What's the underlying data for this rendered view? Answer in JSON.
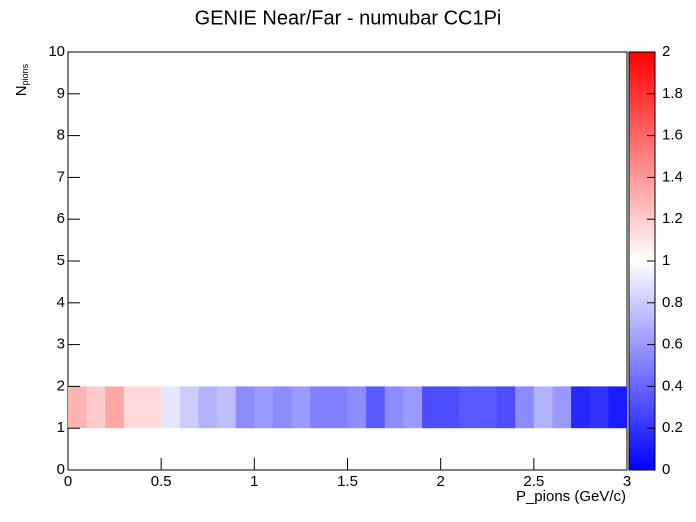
{
  "chart_data": {
    "type": "heatmap",
    "title": "GENIE Near/Far - numubar CC1Pi",
    "xlabel": "P_pions (GeV/c)",
    "ylabel": "N",
    "ylabel_sub": "pions",
    "xbins": [
      0,
      0.1,
      0.2,
      0.3,
      0.4,
      0.5,
      0.6,
      0.7,
      0.8,
      0.9,
      1,
      1.1,
      1.2,
      1.3,
      1.4,
      1.5,
      1.6,
      1.7,
      1.8,
      1.9,
      2,
      2.1,
      2.2,
      2.3,
      2.4,
      2.5,
      2.6,
      2.7,
      2.8,
      2.9,
      3
    ],
    "ybins": [
      1,
      2
    ],
    "values": [
      1.3,
      1.2,
      1.35,
      1.15,
      1.15,
      0.9,
      0.8,
      0.7,
      0.75,
      0.55,
      0.6,
      0.55,
      0.6,
      0.5,
      0.5,
      0.55,
      0.35,
      0.55,
      0.6,
      0.3,
      0.3,
      0.35,
      0.35,
      0.3,
      0.55,
      0.7,
      0.6,
      0.15,
      0.2,
      0.1
    ],
    "xlim": [
      0,
      3
    ],
    "xticks": [
      0,
      0.5,
      1,
      1.5,
      2,
      2.5,
      3
    ],
    "ylim": [
      0,
      10
    ],
    "yticks": [
      0,
      1,
      2,
      3,
      4,
      5,
      6,
      7,
      8,
      9,
      10
    ],
    "zlim": [
      0,
      2
    ],
    "zticks": [
      0,
      0.2,
      0.4,
      0.6,
      0.8,
      1,
      1.2,
      1.4,
      1.6,
      1.8,
      2
    ],
    "colorscale": [
      "#0000ff",
      "#ffffff",
      "#ff0000"
    ]
  }
}
